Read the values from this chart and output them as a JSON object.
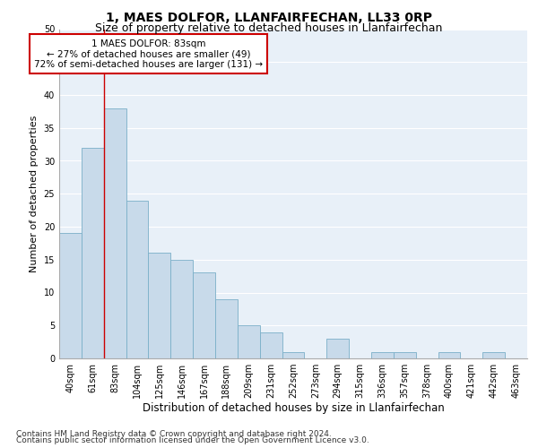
{
  "title": "1, MAES DOLFOR, LLANFAIRFECHAN, LL33 0RP",
  "subtitle": "Size of property relative to detached houses in Llanfairfechan",
  "xlabel": "Distribution of detached houses by size in Llanfairfechan",
  "ylabel": "Number of detached properties",
  "categories": [
    "40sqm",
    "61sqm",
    "83sqm",
    "104sqm",
    "125sqm",
    "146sqm",
    "167sqm",
    "188sqm",
    "209sqm",
    "231sqm",
    "252sqm",
    "273sqm",
    "294sqm",
    "315sqm",
    "336sqm",
    "357sqm",
    "378sqm",
    "400sqm",
    "421sqm",
    "442sqm",
    "463sqm"
  ],
  "values": [
    19,
    32,
    38,
    24,
    16,
    15,
    13,
    9,
    5,
    4,
    1,
    0,
    3,
    0,
    1,
    1,
    0,
    1,
    0,
    1,
    0
  ],
  "bar_color": "#c8daea",
  "bar_edge_color": "#7aafc8",
  "highlight_bar_index": 2,
  "highlight_line_color": "#cc0000",
  "ylim": [
    0,
    50
  ],
  "yticks": [
    0,
    5,
    10,
    15,
    20,
    25,
    30,
    35,
    40,
    45,
    50
  ],
  "annotation_text": "1 MAES DOLFOR: 83sqm\n← 27% of detached houses are smaller (49)\n72% of semi-detached houses are larger (131) →",
  "annotation_box_color": "#ffffff",
  "annotation_box_edge_color": "#cc0000",
  "footer_line1": "Contains HM Land Registry data © Crown copyright and database right 2024.",
  "footer_line2": "Contains public sector information licensed under the Open Government Licence v3.0.",
  "background_color": "#e8f0f8",
  "grid_color": "#ffffff",
  "title_fontsize": 10,
  "subtitle_fontsize": 9,
  "xlabel_fontsize": 8.5,
  "ylabel_fontsize": 8,
  "tick_fontsize": 7,
  "annotation_fontsize": 7.5,
  "footer_fontsize": 6.5
}
